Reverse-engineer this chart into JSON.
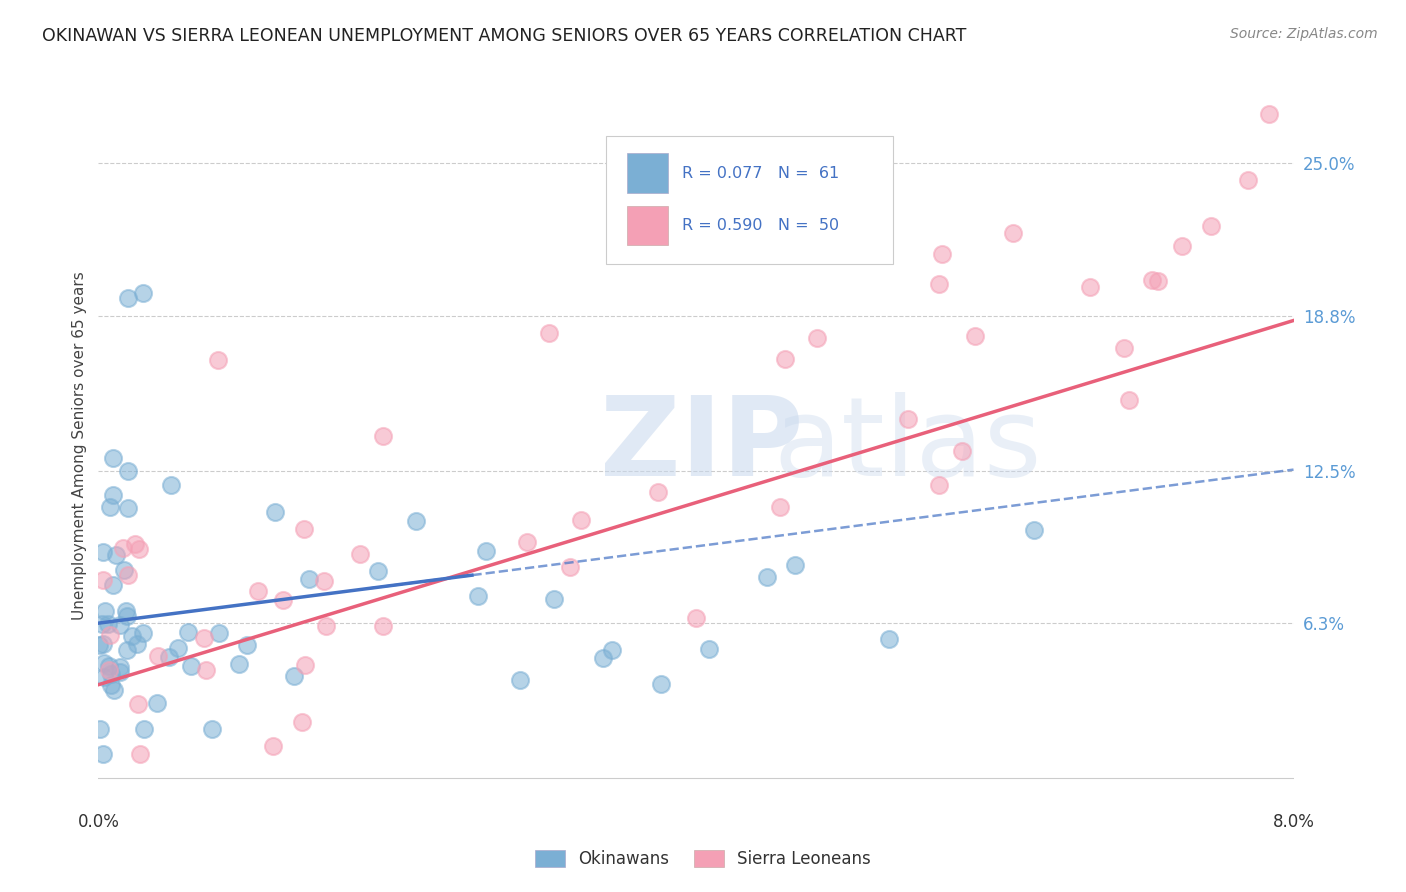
{
  "title": "OKINAWAN VS SIERRA LEONEAN UNEMPLOYMENT AMONG SENIORS OVER 65 YEARS CORRELATION CHART",
  "source": "Source: ZipAtlas.com",
  "ylabel": "Unemployment Among Seniors over 65 years",
  "background_color": "#ffffff",
  "grid_color": "#cccccc",
  "title_color": "#222222",
  "blue_scatter_color": "#7bafd4",
  "pink_scatter_color": "#f4a0b5",
  "blue_line_color": "#4472c4",
  "pink_line_color": "#e8607a",
  "right_tick_color": "#5b9bd5",
  "legend_label1": "Okinawans",
  "legend_label2": "Sierra Leoneans",
  "xlim": [
    0.0,
    0.08
  ],
  "ylim": [
    -0.01,
    0.28
  ],
  "x_ticks": [
    0.0,
    0.08
  ],
  "x_tick_labels": [
    "0.0%",
    "8.0%"
  ],
  "y_ticks_right": [
    0.063,
    0.125,
    0.188,
    0.25
  ],
  "y_tick_labels_right": [
    "6.3%",
    "12.5%",
    "18.8%",
    "25.0%"
  ],
  "watermark_zip_color": "#c8d8ed",
  "watermark_atlas_color": "#c8d8ed"
}
